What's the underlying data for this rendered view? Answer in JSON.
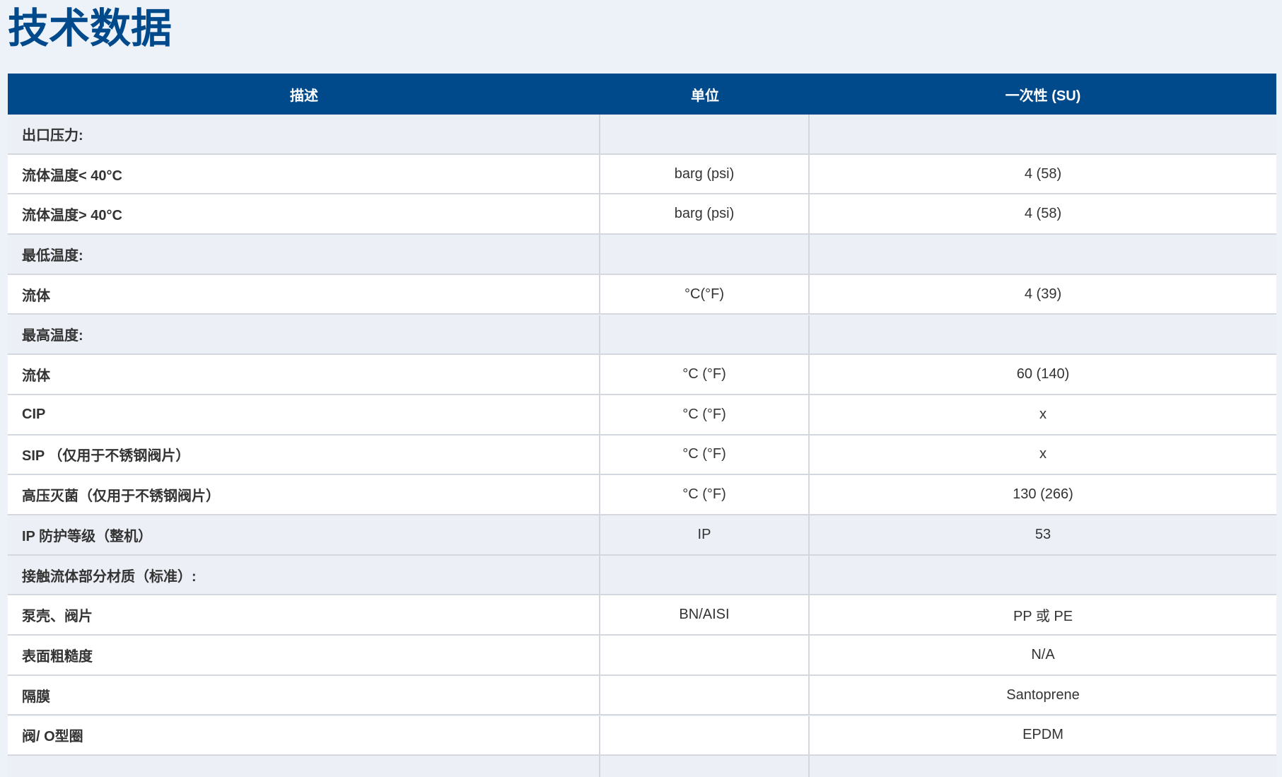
{
  "header": {
    "title": "技术数据"
  },
  "table": {
    "columns": [
      "描述",
      "单位",
      "一次性 (SU)"
    ],
    "rows": [
      {
        "description": "出口压力:"
      },
      {
        "description": "流体温度< 40°C",
        "unit": "barg (psi)",
        "value": "4 (58)"
      },
      {
        "description": "流体温度> 40°C",
        "unit": "barg (psi)",
        "value": "4 (58)"
      },
      {
        "description": "最低温度:"
      },
      {
        "description": "流体",
        "unit": "°C(°F)",
        "value": "4 (39)"
      },
      {
        "description": "最高温度:"
      },
      {
        "description": "流体",
        "unit": "°C (°F)",
        "value": "60 (140)"
      },
      {
        "description": "CIP",
        "unit": "°C (°F)",
        "value": "x"
      },
      {
        "description": "SIP （仅用于不锈钢阀片）",
        "unit": "°C (°F)",
        "value": "x"
      },
      {
        "description": "高压灭菌（仅用于不锈钢阀片）",
        "unit": "°C (°F)",
        "value": "130 (266)"
      },
      {
        "description": "IP 防护等级（整机）",
        "unit": "IP",
        "value": "53"
      },
      {
        "description": "接触流体部分材质（标准）:"
      },
      {
        "description": "泵壳、阀片",
        "unit": "BN/AISI",
        "value": "PP 或 PE"
      },
      {
        "description": "表面粗糙度",
        "value": "N/A"
      },
      {
        "description": "隔膜",
        "value": "Santoprene"
      },
      {
        "description": "阀/ O型圈",
        "value": "EPDM"
      }
    ]
  }
}
